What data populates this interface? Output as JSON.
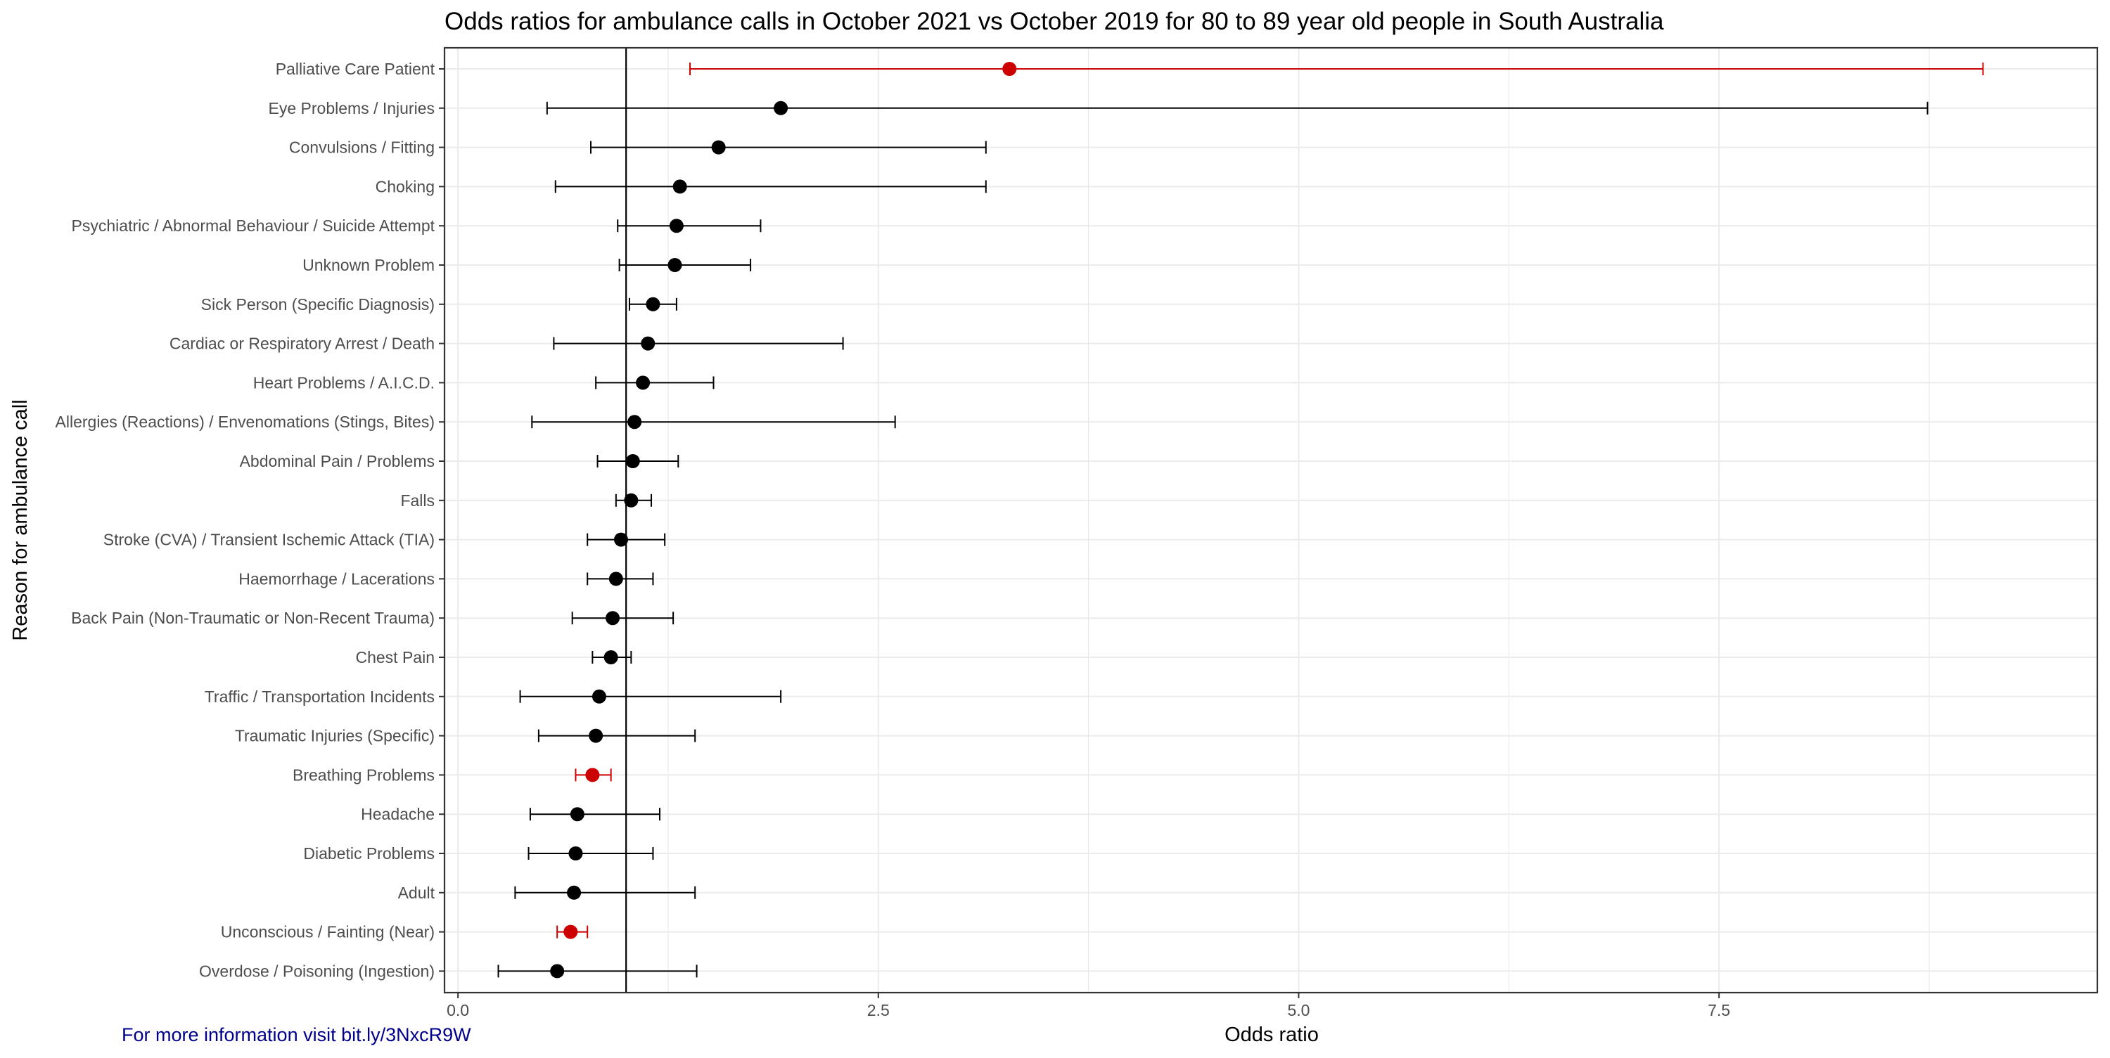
{
  "chart_data": {
    "type": "scatter",
    "subtype": "forest-plot",
    "title": "Odds ratios for ambulance calls in October 2021 vs October 2019 for 80 to 89 year old people in South Australia",
    "xlabel": "Odds ratio",
    "ylabel": "Reason for ambulance call",
    "xlim": [
      -0.08,
      9.75
    ],
    "x_ticks": [
      0.0,
      2.5,
      5.0,
      7.5
    ],
    "x_tick_labels": [
      "0.0",
      "2.5",
      "5.0",
      "7.5"
    ],
    "reference_line": 1.0,
    "grid": true,
    "legend": "none",
    "colors": {
      "default": "#000000",
      "highlight": "#cc0000",
      "caption": "#00008b",
      "panel_border": "#333333",
      "grid": "#ebebeb"
    },
    "rows": [
      {
        "label": "Palliative Care Patient",
        "or": 3.28,
        "lower": 1.38,
        "upper": 9.07,
        "highlight": true
      },
      {
        "label": "Eye Problems / Injuries",
        "or": 1.92,
        "lower": 0.53,
        "upper": 8.74,
        "highlight": false
      },
      {
        "label": "Convulsions / Fitting",
        "or": 1.55,
        "lower": 0.79,
        "upper": 3.14,
        "highlight": false
      },
      {
        "label": "Choking",
        "or": 1.32,
        "lower": 0.58,
        "upper": 3.14,
        "highlight": false
      },
      {
        "label": "Psychiatric / Abnormal Behaviour / Suicide Attempt",
        "or": 1.3,
        "lower": 0.95,
        "upper": 1.8,
        "highlight": false
      },
      {
        "label": "Unknown Problem",
        "or": 1.29,
        "lower": 0.96,
        "upper": 1.74,
        "highlight": false
      },
      {
        "label": "Sick Person (Specific Diagnosis)",
        "or": 1.16,
        "lower": 1.02,
        "upper": 1.3,
        "highlight": false
      },
      {
        "label": "Cardiac or Respiratory Arrest / Death",
        "or": 1.13,
        "lower": 0.57,
        "upper": 2.29,
        "highlight": false
      },
      {
        "label": "Heart Problems / A.I.C.D.",
        "or": 1.1,
        "lower": 0.82,
        "upper": 1.52,
        "highlight": false
      },
      {
        "label": "Allergies (Reactions) / Envenomations (Stings, Bites)",
        "or": 1.05,
        "lower": 0.44,
        "upper": 2.6,
        "highlight": false
      },
      {
        "label": "Abdominal Pain / Problems",
        "or": 1.04,
        "lower": 0.83,
        "upper": 1.31,
        "highlight": false
      },
      {
        "label": "Falls",
        "or": 1.03,
        "lower": 0.94,
        "upper": 1.15,
        "highlight": false
      },
      {
        "label": "Stroke (CVA) / Transient Ischemic Attack (TIA)",
        "or": 0.97,
        "lower": 0.77,
        "upper": 1.23,
        "highlight": false
      },
      {
        "label": "Haemorrhage / Lacerations",
        "or": 0.94,
        "lower": 0.77,
        "upper": 1.16,
        "highlight": false
      },
      {
        "label": "Back Pain (Non-Traumatic or Non-Recent Trauma)",
        "or": 0.92,
        "lower": 0.68,
        "upper": 1.28,
        "highlight": false
      },
      {
        "label": "Chest Pain",
        "or": 0.91,
        "lower": 0.8,
        "upper": 1.03,
        "highlight": false
      },
      {
        "label": "Traffic / Transportation Incidents",
        "or": 0.84,
        "lower": 0.37,
        "upper": 1.92,
        "highlight": false
      },
      {
        "label": "Traumatic Injuries (Specific)",
        "or": 0.82,
        "lower": 0.48,
        "upper": 1.41,
        "highlight": false
      },
      {
        "label": "Breathing Problems",
        "or": 0.8,
        "lower": 0.7,
        "upper": 0.91,
        "highlight": true
      },
      {
        "label": "Headache",
        "or": 0.71,
        "lower": 0.43,
        "upper": 1.2,
        "highlight": false
      },
      {
        "label": "Diabetic Problems",
        "or": 0.7,
        "lower": 0.42,
        "upper": 1.16,
        "highlight": false
      },
      {
        "label": "Adult",
        "or": 0.69,
        "lower": 0.34,
        "upper": 1.41,
        "highlight": false
      },
      {
        "label": "Unconscious / Fainting (Near)",
        "or": 0.67,
        "lower": 0.59,
        "upper": 0.77,
        "highlight": true
      },
      {
        "label": "Overdose / Poisoning (Ingestion)",
        "or": 0.59,
        "lower": 0.24,
        "upper": 1.42,
        "highlight": false
      }
    ]
  },
  "caption": {
    "text": "For more information visit bit.ly/3NxcR9W"
  }
}
